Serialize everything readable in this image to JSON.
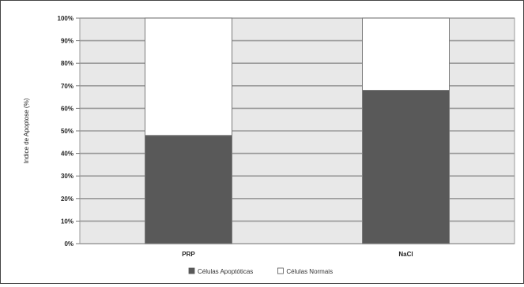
{
  "chart_data": {
    "type": "bar",
    "stacked": true,
    "percent": true,
    "title": "",
    "xlabel": "",
    "ylabel": "Indice de Apoptose (%)",
    "ylim": [
      0,
      100
    ],
    "yticks": [
      "0%",
      "10%",
      "20%",
      "30%",
      "40%",
      "50%",
      "60%",
      "70%",
      "80%",
      "90%",
      "100%"
    ],
    "categories": [
      "PRP",
      "NaCl"
    ],
    "series": [
      {
        "name": "Células Apoptóticas",
        "values": [
          48,
          68
        ],
        "color": "#595959"
      },
      {
        "name": "Células Normais",
        "values": [
          52,
          32
        ],
        "color": "#ffffff"
      }
    ],
    "grid": true,
    "legend": "bottom",
    "plot_background": "#e8e8e8"
  }
}
